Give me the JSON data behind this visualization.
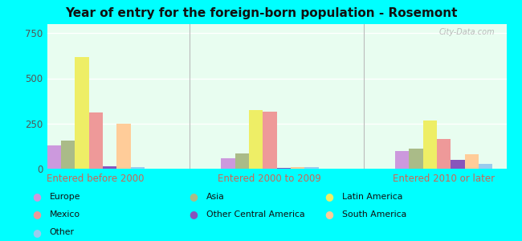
{
  "title": "Year of entry for the foreign-born population - Rosemont",
  "categories": [
    "Entered before 2000",
    "Entered 2000 to 2009",
    "Entered 2010 or later"
  ],
  "series_order": [
    "Europe",
    "Asia",
    "Latin America",
    "Mexico",
    "Other Central America",
    "South America",
    "Other"
  ],
  "series": {
    "Europe": [
      130,
      60,
      100
    ],
    "Asia": [
      155,
      85,
      110
    ],
    "Latin America": [
      620,
      325,
      265
    ],
    "Mexico": [
      310,
      315,
      165
    ],
    "Other Central America": [
      15,
      5,
      50
    ],
    "South America": [
      250,
      10,
      80
    ],
    "Other": [
      10,
      10,
      25
    ]
  },
  "colors": {
    "Europe": "#cc99dd",
    "Asia": "#aabb88",
    "Latin America": "#eeee66",
    "Mexico": "#ee9999",
    "Other Central America": "#8855bb",
    "South America": "#ffcc99",
    "Other": "#99ccee"
  },
  "ylim": [
    0,
    800
  ],
  "yticks": [
    0,
    250,
    500,
    750
  ],
  "plot_bg_top": "#f0fff8",
  "plot_bg_bottom": "#d8f8e8",
  "outer_background": "#00ffff",
  "watermark": "City-Data.com",
  "legend_col1": [
    "Europe",
    "Mexico",
    "Other"
  ],
  "legend_col2": [
    "Asia",
    "Other Central America"
  ],
  "legend_col3": [
    "Latin America",
    "South America"
  ]
}
